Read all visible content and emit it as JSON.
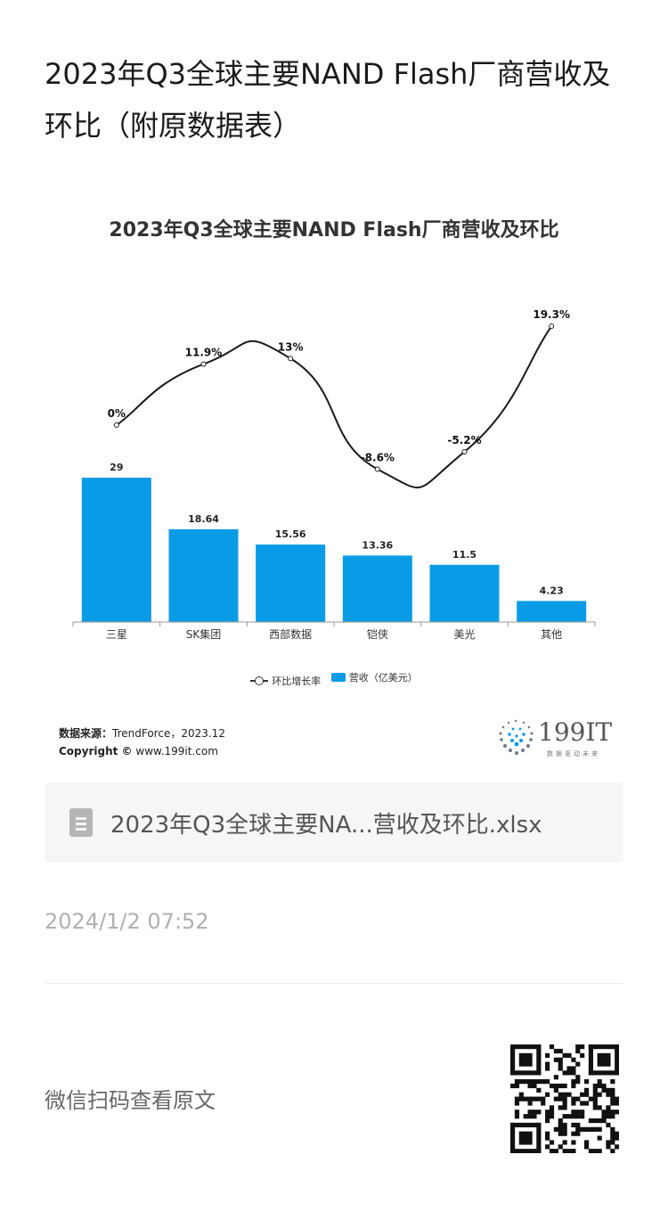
{
  "page": {
    "title": "2023年Q3全球主要NAND Flash厂商营收及环比（附原数据表）",
    "file_name": "2023年Q3全球主要NA...营收及环比.xlsx",
    "date": "2024/1/2 07:52",
    "scan_text": "微信扫码查看原文"
  },
  "source": {
    "label": "数据来源：",
    "text": "TrendForce，2023.12",
    "copyright_label": "Copyright ©",
    "copyright_text": "www.199it.com"
  },
  "logo": {
    "text": "199IT",
    "sub": "数据驱动未来"
  },
  "colors": {
    "bar": "#0a9be6",
    "line": "#1a1a1a"
  },
  "chart_data": {
    "type": "bar",
    "title": "2023年Q3全球主要NAND Flash厂商营收及环比",
    "categories": [
      "三星",
      "SK集团",
      "西部数据",
      "铠侠",
      "美光",
      "其他"
    ],
    "series": [
      {
        "name": "营收（亿美元）",
        "type": "bar",
        "values": [
          29,
          18.64,
          15.56,
          13.36,
          11.5,
          4.23
        ],
        "labels": [
          "29",
          "18.64",
          "15.56",
          "13.36",
          "11.5",
          "4.23"
        ]
      },
      {
        "name": "环比增长率",
        "type": "line",
        "values": [
          0,
          11.9,
          13,
          -8.6,
          -5.2,
          19.3
        ],
        "labels": [
          "0%",
          "11.9%",
          "13%",
          "-8.6%",
          "-5.2%",
          "19.3%"
        ]
      }
    ],
    "legend_position": "bottom",
    "grid": false
  }
}
